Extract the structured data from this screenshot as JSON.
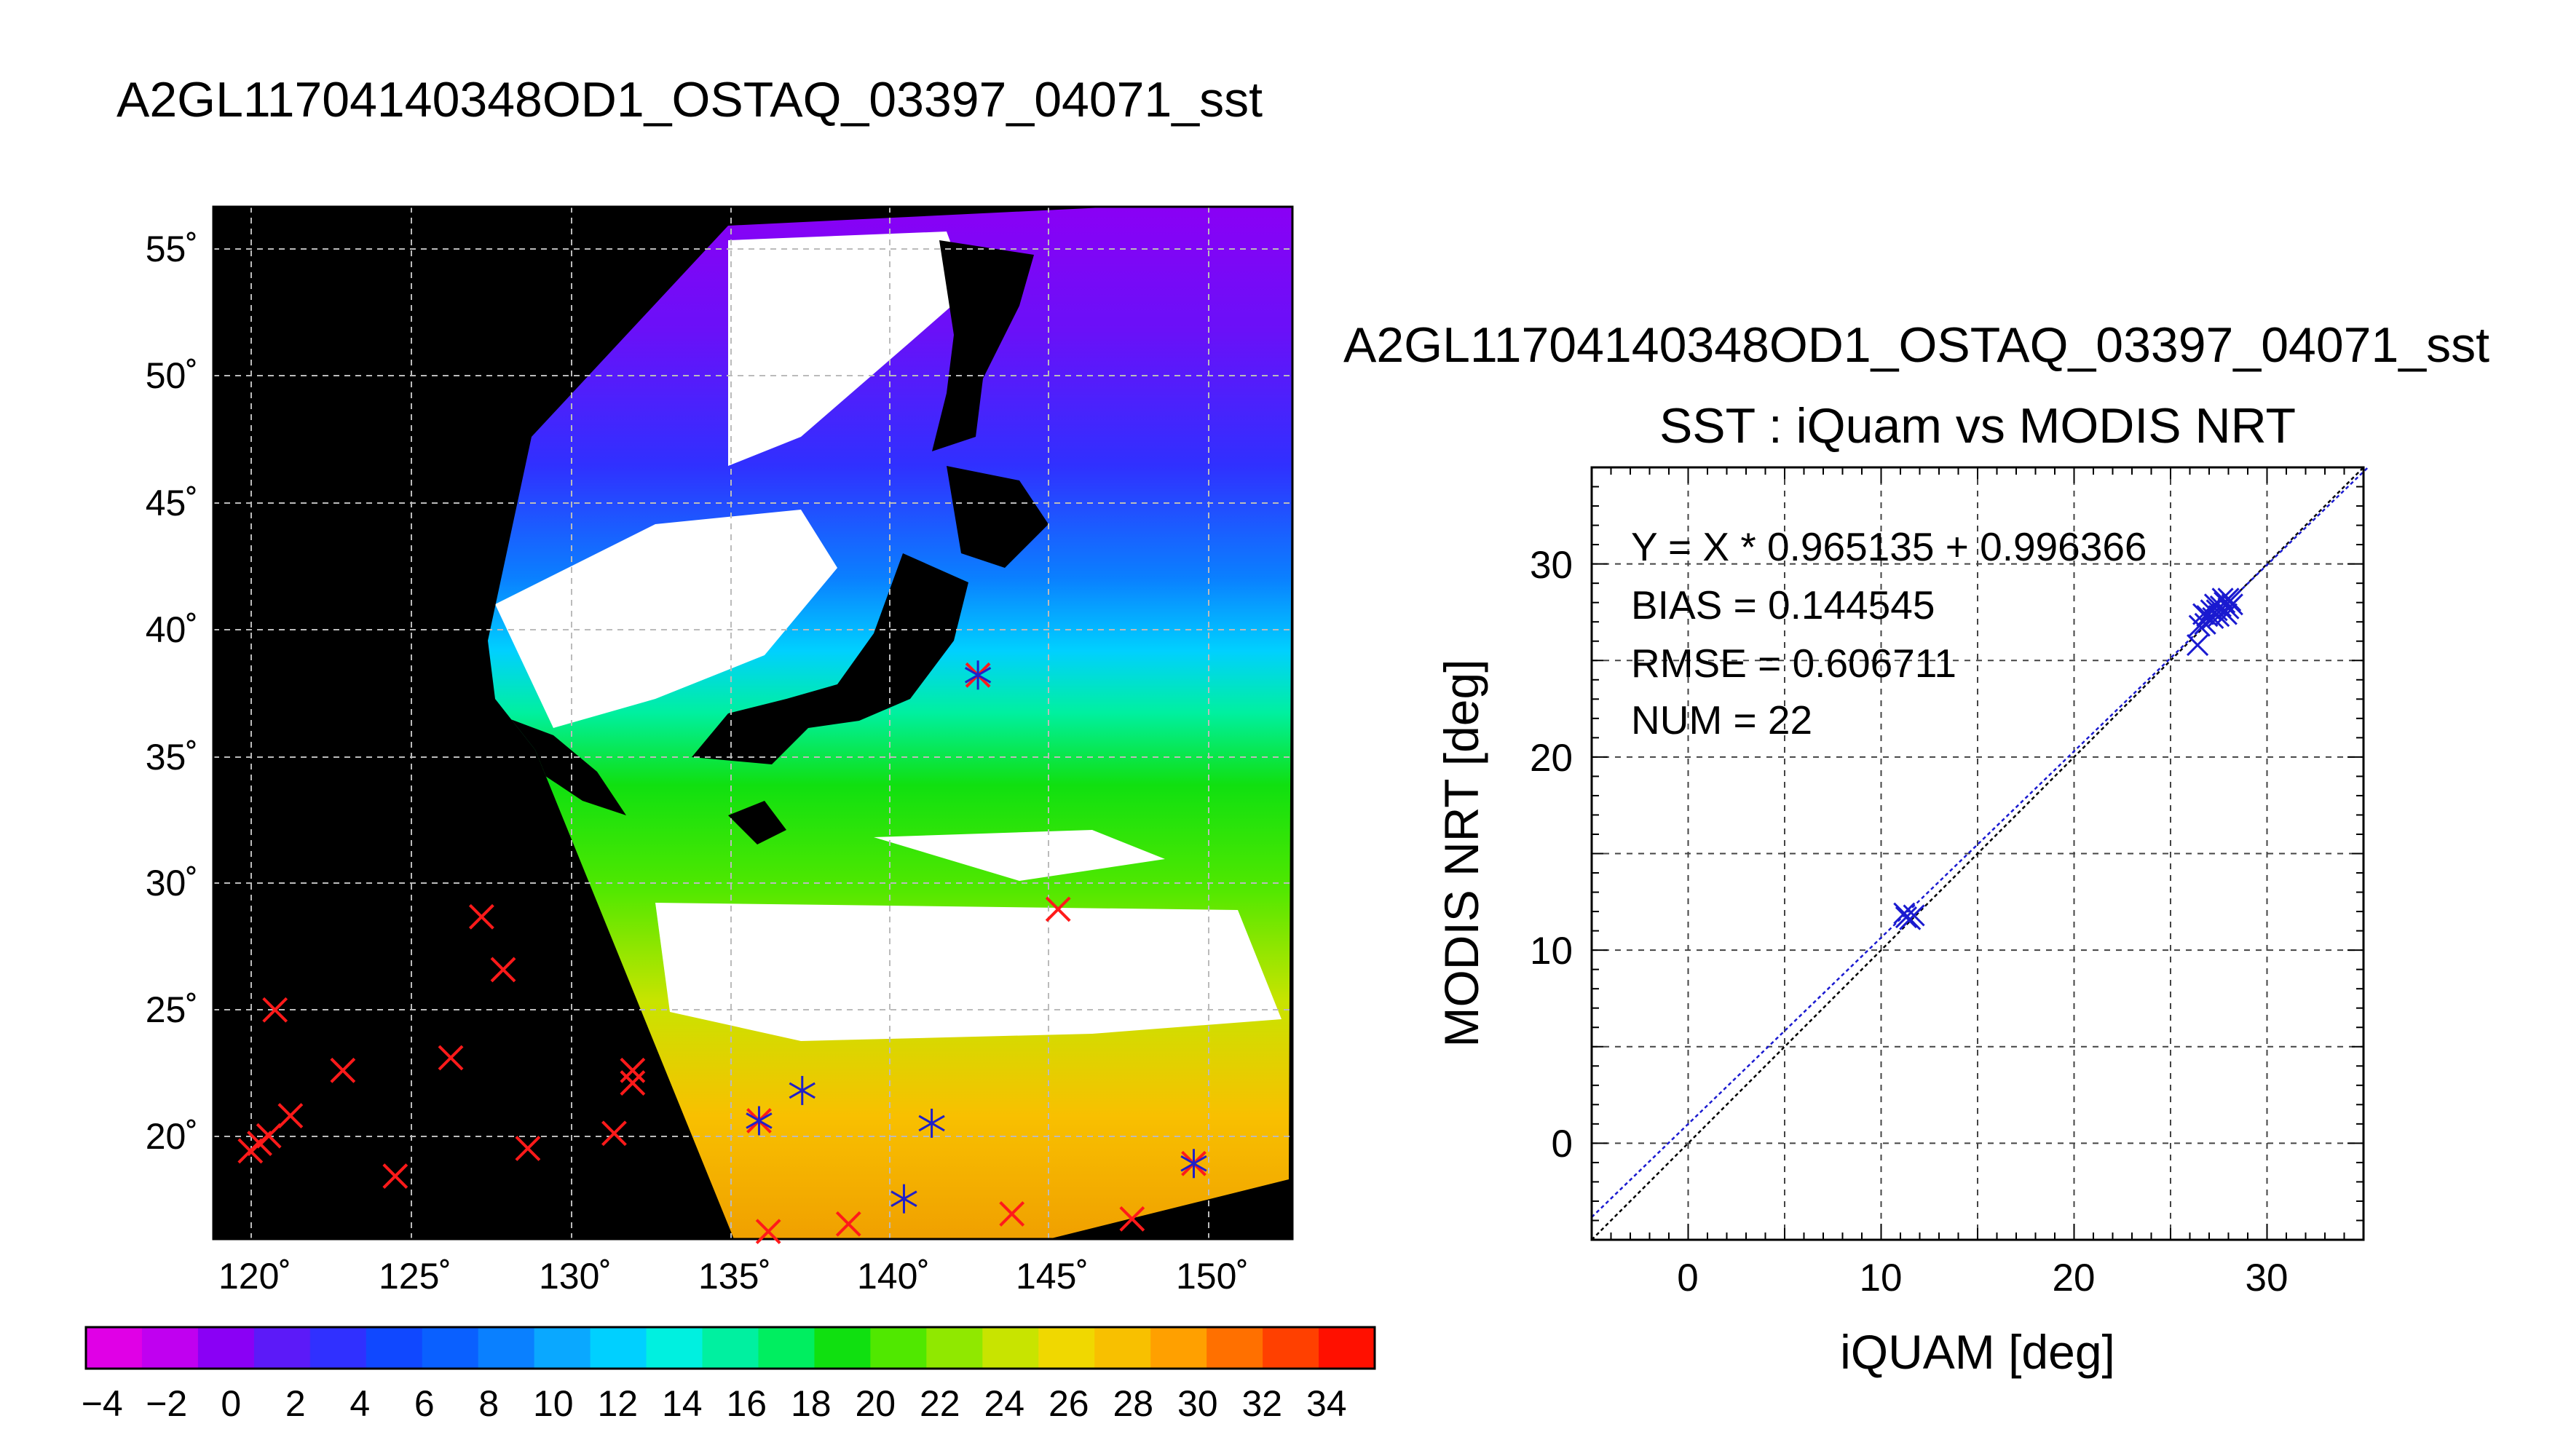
{
  "page": {
    "title": "A2GL11704140348OD1_OSTAQ_03397_04071_sst"
  },
  "map": {
    "lat_ticks": [
      "55˚",
      "50˚",
      "45˚",
      "40˚",
      "35˚",
      "30˚",
      "25˚",
      "20˚"
    ],
    "lon_ticks": [
      "120˚",
      "125˚",
      "130˚",
      "135˚",
      "140˚",
      "145˚",
      "150˚"
    ],
    "lon_range": [
      118.5,
      153.5
    ],
    "lat_range": [
      15.8,
      56.8
    ],
    "colorbar": {
      "tick_labels": [
        "−4",
        "−2",
        "0",
        "2",
        "4",
        "6",
        "8",
        "10",
        "12",
        "14",
        "16",
        "18",
        "20",
        "22",
        "24",
        "26",
        "28",
        "30",
        "32",
        "34"
      ],
      "range": [
        -5,
        35
      ],
      "colors": [
        "#e000e6",
        "#c000f0",
        "#8a00f5",
        "#5c1af8",
        "#3030ff",
        "#1048ff",
        "#0a60ff",
        "#0a80ff",
        "#0aa8ff",
        "#00d0ff",
        "#00f0e0",
        "#00f0a0",
        "#00ee60",
        "#10e010",
        "#50e800",
        "#90e800",
        "#c8e400",
        "#f0d800",
        "#f8c000",
        "#ffa000",
        "#ff7000",
        "#ff4000",
        "#ff1000"
      ]
    },
    "markers_red": [
      {
        "lon": 119.7,
        "lat": 19.3
      },
      {
        "lon": 120.0,
        "lat": 19.6
      },
      {
        "lon": 120.3,
        "lat": 19.9
      },
      {
        "lon": 121.0,
        "lat": 20.7
      },
      {
        "lon": 120.5,
        "lat": 24.9
      },
      {
        "lon": 122.7,
        "lat": 22.5
      },
      {
        "lon": 124.4,
        "lat": 18.3
      },
      {
        "lon": 126.2,
        "lat": 23.0
      },
      {
        "lon": 127.2,
        "lat": 28.6
      },
      {
        "lon": 127.9,
        "lat": 26.5
      },
      {
        "lon": 128.7,
        "lat": 19.4
      },
      {
        "lon": 131.5,
        "lat": 20.0
      },
      {
        "lon": 132.1,
        "lat": 22.0
      },
      {
        "lon": 132.1,
        "lat": 22.5
      },
      {
        "lon": 136.5,
        "lat": 16.1
      },
      {
        "lon": 139.1,
        "lat": 16.4
      },
      {
        "lon": 144.4,
        "lat": 16.8
      },
      {
        "lon": 148.3,
        "lat": 16.6
      },
      {
        "lon": 143.3,
        "lat": 38.2
      },
      {
        "lon": 145.9,
        "lat": 28.9
      },
      {
        "lon": 136.2,
        "lat": 20.5
      },
      {
        "lon": 150.3,
        "lat": 18.8
      }
    ],
    "markers_blue": [
      {
        "lon": 136.2,
        "lat": 20.5
      },
      {
        "lon": 137.6,
        "lat": 21.7
      },
      {
        "lon": 141.8,
        "lat": 20.4
      },
      {
        "lon": 140.9,
        "lat": 17.4
      },
      {
        "lon": 150.3,
        "lat": 18.8
      },
      {
        "lon": 143.3,
        "lat": 38.2
      }
    ]
  },
  "scatter": {
    "title_line1": "A2GL11704140348OD1_OSTAQ_03397_04071_sst",
    "title_line2": "SST : iQuam vs MODIS NRT",
    "xlabel": "iQUAM [deg]",
    "ylabel": "MODIS NRT [deg]",
    "stats": {
      "line1": "Y = X * 0.965135 + 0.996366",
      "line2": "BIAS = 0.144545",
      "line3": "RMSE = 0.606711",
      "line4": "NUM = 22"
    },
    "x_ticks": [
      "0",
      "10",
      "20",
      "30"
    ],
    "y_ticks": [
      "0",
      "10",
      "20",
      "30"
    ]
  },
  "chart_data": {
    "type": "scatter",
    "title": "SST : iQuam vs MODIS NRT",
    "xlabel": "iQUAM [deg]",
    "ylabel": "MODIS NRT [deg]",
    "xlim": [
      -5,
      35
    ],
    "ylim": [
      -5,
      35
    ],
    "grid": true,
    "series": [
      {
        "values": [
          {
            "x": 26.4,
            "y": 25.8
          },
          {
            "x": 26.5,
            "y": 26.8
          },
          {
            "x": 26.7,
            "y": 27.4
          },
          {
            "x": 27.2,
            "y": 27.2
          },
          {
            "x": 27.4,
            "y": 27.6
          },
          {
            "x": 27.6,
            "y": 27.8
          },
          {
            "x": 27.8,
            "y": 28.0
          },
          {
            "x": 28.0,
            "y": 27.7
          },
          {
            "x": 28.1,
            "y": 28.1
          },
          {
            "x": 27.9,
            "y": 27.4
          },
          {
            "x": 27.5,
            "y": 27.3
          },
          {
            "x": 27.3,
            "y": 27.9
          },
          {
            "x": 28.2,
            "y": 27.9
          },
          {
            "x": 26.9,
            "y": 27.3
          },
          {
            "x": 27.7,
            "y": 28.2
          },
          {
            "x": 28.0,
            "y": 28.2
          },
          {
            "x": 26.8,
            "y": 26.9
          },
          {
            "x": 27.1,
            "y": 27.6
          },
          {
            "x": 11.2,
            "y": 11.9
          },
          {
            "x": 11.5,
            "y": 11.6
          },
          {
            "x": 11.7,
            "y": 11.8
          },
          {
            "x": 11.3,
            "y": 11.7
          }
        ]
      }
    ],
    "fit_line": {
      "slope": 0.965135,
      "intercept": 0.996366
    },
    "identity_line": true
  }
}
